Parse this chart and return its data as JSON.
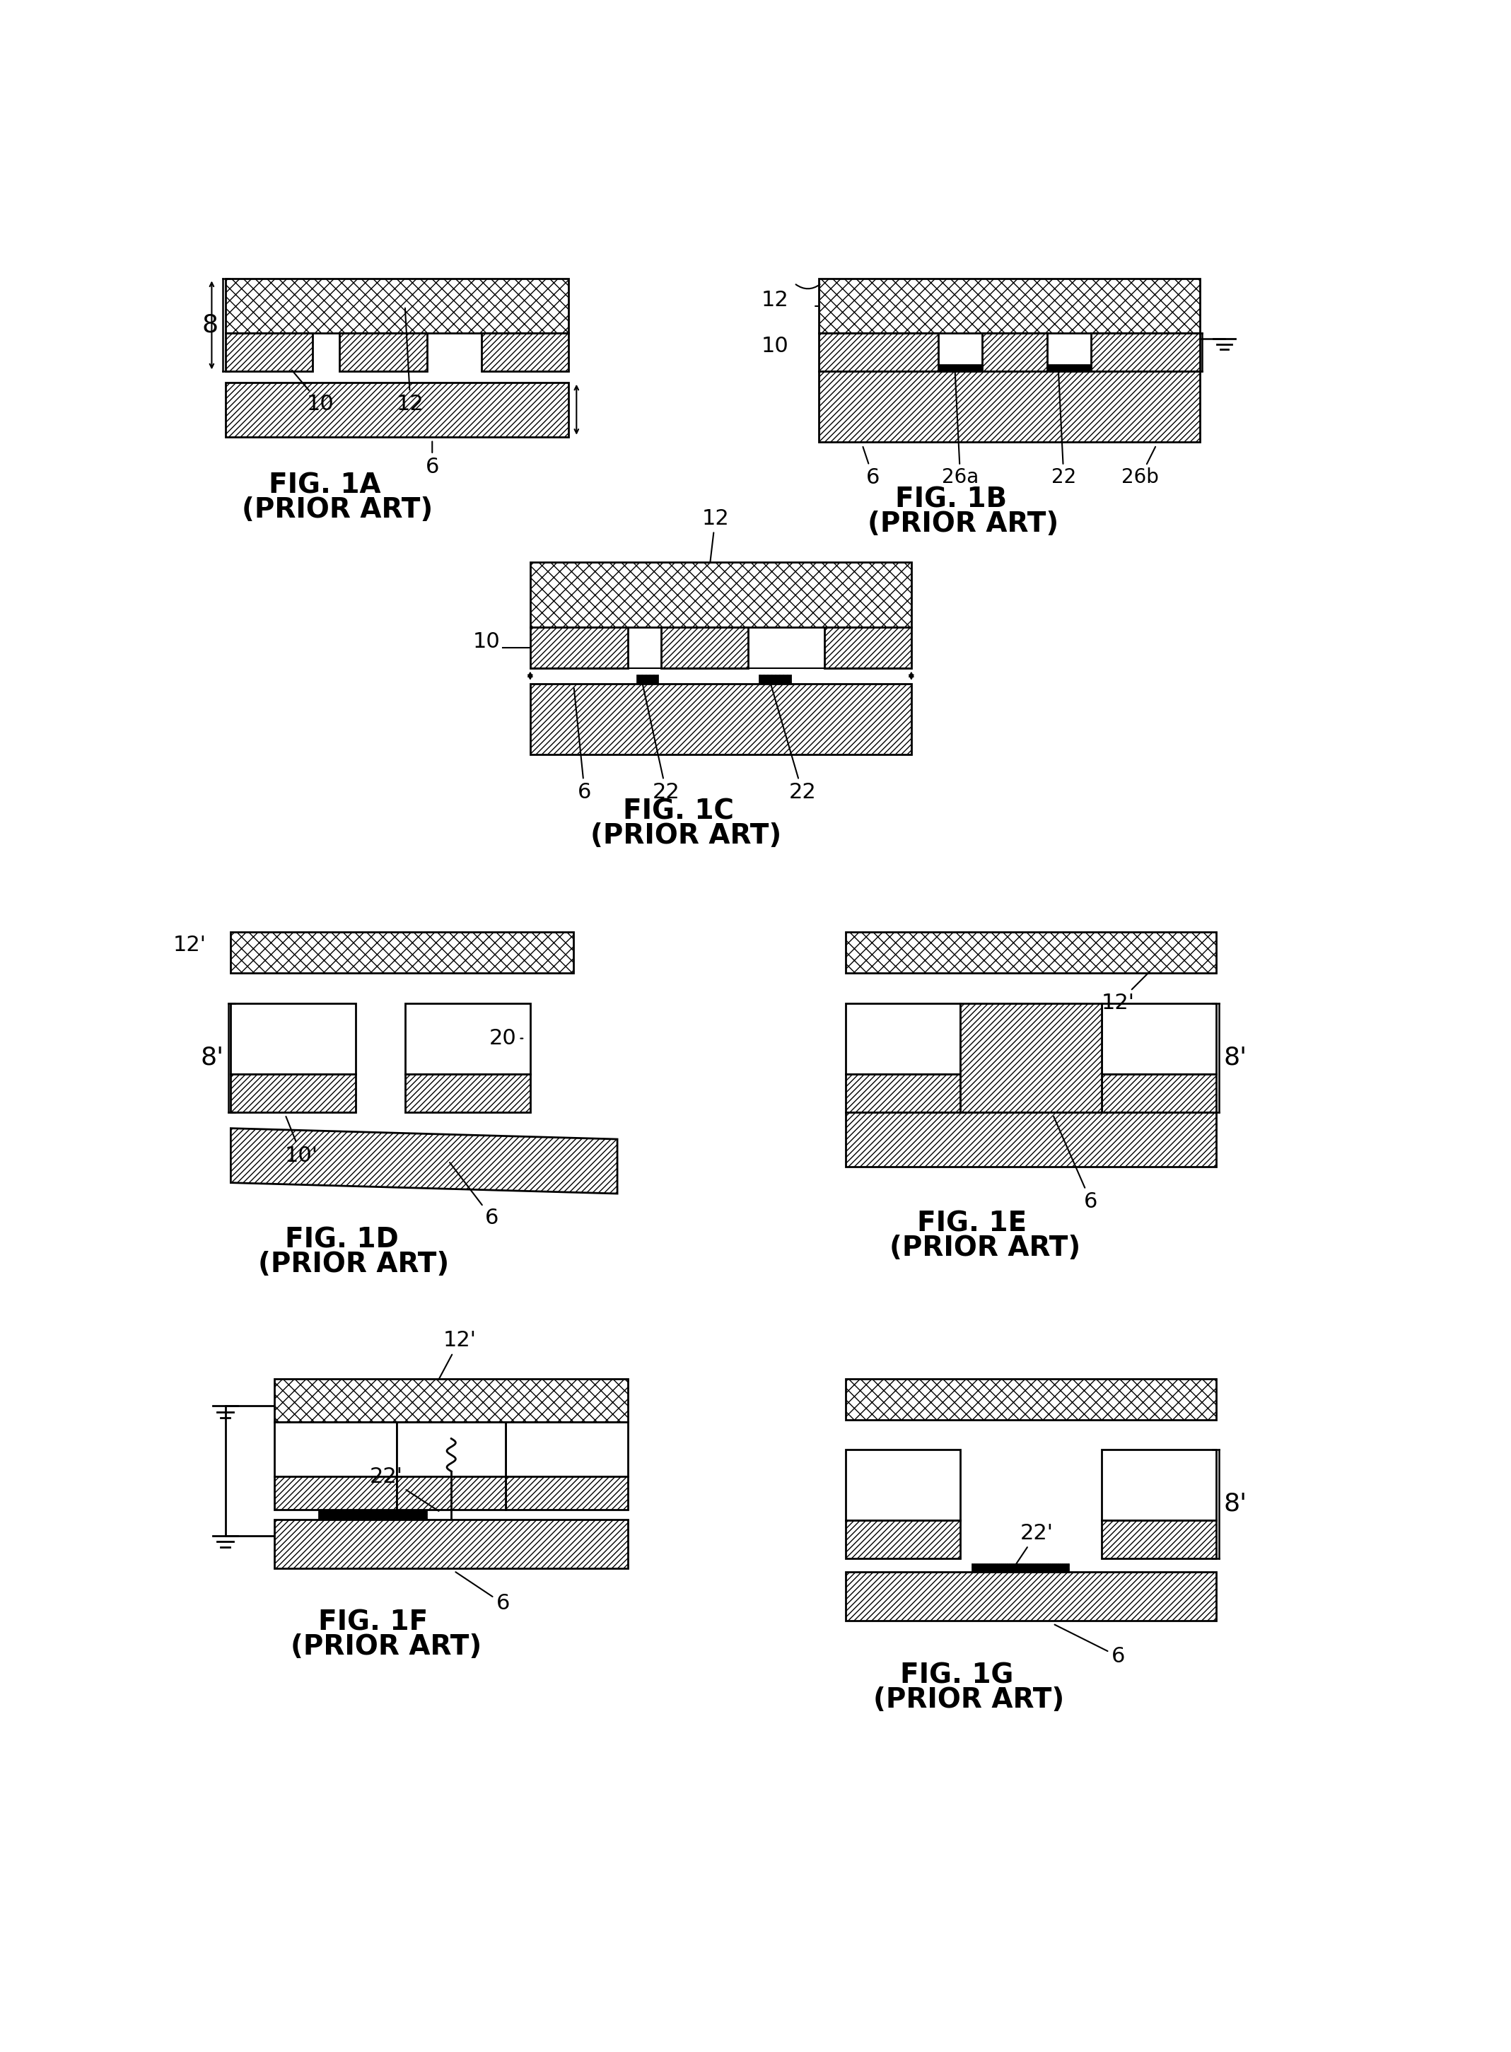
{
  "bg_color": "#ffffff",
  "figures": [
    "1A",
    "1B",
    "1C",
    "1D",
    "1E",
    "1F",
    "1G"
  ],
  "fig_labels": {
    "1A": "FIG. 1A",
    "1B": "FIG. 1B",
    "1C": "FIG. 1C",
    "1D": "FIG. 1D",
    "1E": "FIG. 1E",
    "1F": "FIG. 1F",
    "1G": "FIG. 1G"
  },
  "sublabel": "(PRIOR ART)"
}
